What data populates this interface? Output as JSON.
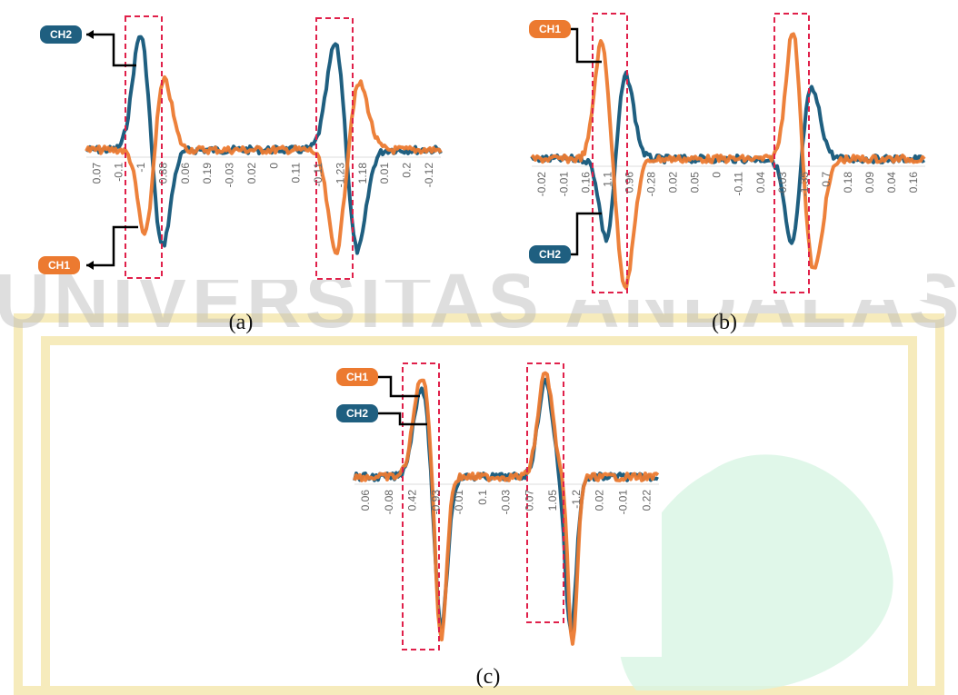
{
  "watermark": "UNIVERSITAS ANDALAS",
  "panels": [
    {
      "caption": "(a)",
      "labels": [
        "CH2",
        "CH1"
      ],
      "xtick_labels": [
        "0.07",
        "-0.1",
        "-1",
        "0.88",
        "0.06",
        "0.19",
        "-0.03",
        "0.02",
        "0",
        "0.11",
        "-0.11",
        "-1.23",
        "1.18",
        "0.01",
        "0.2",
        "-0.12"
      ]
    },
    {
      "caption": "(b)",
      "labels": [
        "CH1",
        "CH2"
      ],
      "xtick_labels": [
        "-0.02",
        "-0.01",
        "0.16",
        "1.1",
        "0.96",
        "-0.28",
        "0.02",
        "0.05",
        "0",
        "-0.11",
        "0.04",
        "-0.03",
        "-1.35",
        "0.7",
        "0.18",
        "0.09",
        "0.04",
        "0.16"
      ]
    },
    {
      "caption": "(c)",
      "labels": [
        "CH1",
        "CH2"
      ],
      "xtick_labels": [
        "0.06",
        "-0.08",
        "0.42",
        "-0.93",
        "-0.01",
        "0.1",
        "-0.03",
        "0.07",
        "1.05",
        "-1.2",
        "0.02",
        "-0.01",
        "0.22"
      ]
    }
  ]
}
